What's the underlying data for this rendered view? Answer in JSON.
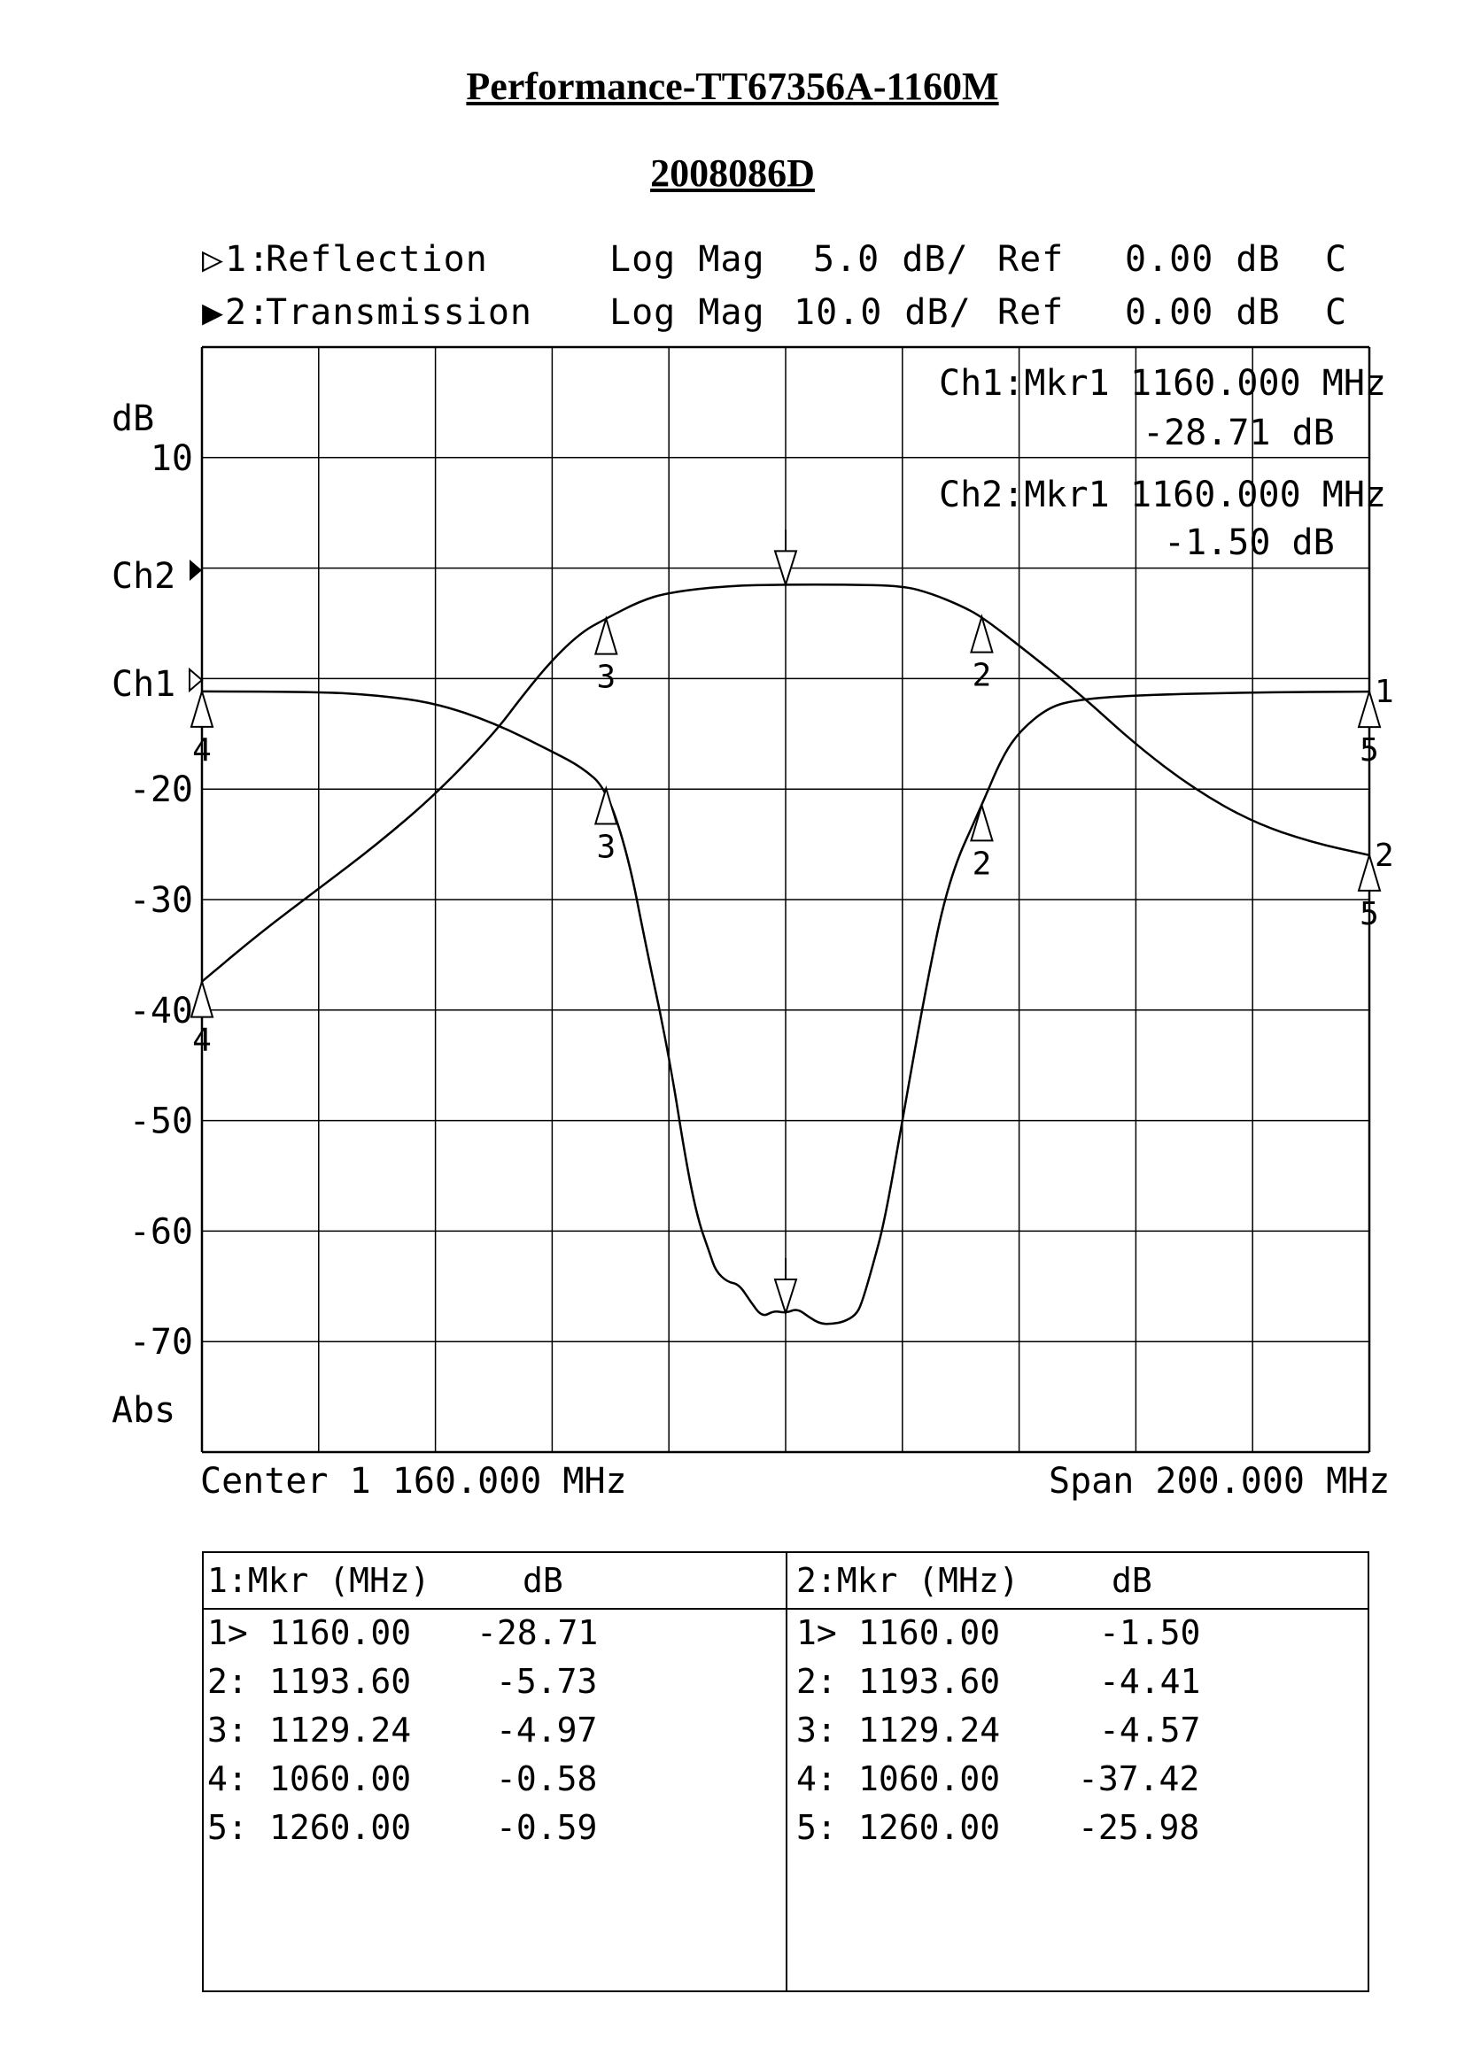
{
  "header": {
    "title": "Performance-TT67356A-1160M",
    "subtitle": "2008086D"
  },
  "channels": [
    {
      "id": "1",
      "name": "Reflection",
      "format": "Log Mag",
      "scale": "5.0 dB/",
      "ref_label": "Ref",
      "ref_value": "0.00 dB",
      "flag": "C"
    },
    {
      "id": "2",
      "name": "Transmission",
      "format": "Log Mag",
      "scale": "10.0 dB/",
      "ref_label": "Ref",
      "ref_value": "0.00 dB",
      "flag": "C"
    }
  ],
  "marker_readouts": [
    {
      "label": "Ch1:Mkr1",
      "freq": "1160.000 MHz",
      "value": "-28.71 dB"
    },
    {
      "label": "Ch2:Mkr1",
      "freq": "1160.000 MHz",
      "value": "-1.50 dB"
    }
  ],
  "footer": {
    "center": "Center 1 160.000 MHz",
    "span": "Span 200.000 MHz"
  },
  "chart_data": {
    "type": "line",
    "xlabel": "",
    "ylabel": "dB",
    "axis_bottom_label": "Abs",
    "x_range_mhz": [
      1060,
      1260
    ],
    "ylim": [
      -80,
      20
    ],
    "y_ticks": [
      10,
      -20,
      -30,
      -40,
      -50,
      -60,
      -70
    ],
    "y_tick_labels": [
      "10",
      "-20",
      "-30",
      "-40",
      "-50",
      "-60",
      "-70"
    ],
    "ref_labels": [
      "Ch2",
      "Ch1"
    ],
    "ref_levels_db": [
      0,
      -10
    ],
    "grid": true,
    "grid_divisions_x": 10,
    "series": [
      {
        "name": "Reflection",
        "trace_tag": "1",
        "ref_position_db": -10,
        "scale_db_per_div": 5,
        "x": [
          1060,
          1080,
          1090,
          1100,
          1110,
          1120,
          1125,
          1129.24,
          1133,
          1136,
          1140,
          1143,
          1145,
          1147,
          1148,
          1150,
          1152,
          1154,
          1156,
          1158,
          1160,
          1162,
          1164,
          1166,
          1168,
          1170,
          1172,
          1173,
          1175,
          1177,
          1180,
          1184,
          1188,
          1193.6,
          1197,
          1200,
          1205,
          1210,
          1220,
          1240,
          1260
        ],
        "y": [
          -0.58,
          -0.6,
          -0.75,
          -1.1,
          -2,
          -3.3,
          -4,
          -4.97,
          -8,
          -12,
          -17,
          -22,
          -24.5,
          -26,
          -26.8,
          -27.3,
          -27.4,
          -28.2,
          -28.9,
          -28.6,
          -28.71,
          -28.5,
          -28.9,
          -29.2,
          -29.2,
          -29.1,
          -28.8,
          -28.3,
          -26.5,
          -24.5,
          -20,
          -14,
          -9,
          -5.73,
          -3.6,
          -2.4,
          -1.3,
          -0.95,
          -0.75,
          -0.62,
          -0.59
        ]
      },
      {
        "name": "Transmission",
        "trace_tag": "2",
        "ref_position_db": 0,
        "scale_db_per_div": 10,
        "x": [
          1060,
          1070,
          1080,
          1090,
          1100,
          1110,
          1115,
          1120,
          1125,
          1129.24,
          1135,
          1140,
          1150,
          1160,
          1170,
          1180,
          1185,
          1190,
          1193.6,
          1200,
          1210,
          1220,
          1230,
          1240,
          1250,
          1260
        ],
        "y": [
          -37.42,
          -33,
          -29,
          -25,
          -20.5,
          -15,
          -11.5,
          -8.3,
          -5.8,
          -4.57,
          -3,
          -2.2,
          -1.6,
          -1.5,
          -1.5,
          -1.6,
          -2.3,
          -3.4,
          -4.41,
          -7,
          -11.2,
          -16,
          -20,
          -23,
          -24.8,
          -25.98
        ]
      }
    ],
    "markers": [
      {
        "n": "1",
        "ch": 1,
        "x": 1160,
        "y": -28.71
      },
      {
        "n": "2",
        "ch": 1,
        "x": 1193.6,
        "y": -5.73
      },
      {
        "n": "3",
        "ch": 1,
        "x": 1129.24,
        "y": -4.97
      },
      {
        "n": "4",
        "ch": 1,
        "x": 1060,
        "y": -0.58
      },
      {
        "n": "5",
        "ch": 1,
        "x": 1260,
        "y": -0.59
      },
      {
        "n": "1",
        "ch": 2,
        "x": 1160,
        "y": -1.5
      },
      {
        "n": "2",
        "ch": 2,
        "x": 1193.6,
        "y": -4.41
      },
      {
        "n": "3",
        "ch": 2,
        "x": 1129.24,
        "y": -4.57
      },
      {
        "n": "4",
        "ch": 2,
        "x": 1060,
        "y": -37.42
      },
      {
        "n": "5",
        "ch": 2,
        "x": 1260,
        "y": -25.98
      }
    ]
  },
  "marker_table": [
    {
      "header_mkr": "1:Mkr (MHz)",
      "header_db": "dB",
      "rows": [
        {
          "idx": "1>",
          "freq": "1160.00",
          "db": "-28.71"
        },
        {
          "idx": "2:",
          "freq": "1193.60",
          "db": "-5.73"
        },
        {
          "idx": "3:",
          "freq": "1129.24",
          "db": "-4.97"
        },
        {
          "idx": "4:",
          "freq": "1060.00",
          "db": "-0.58"
        },
        {
          "idx": "5:",
          "freq": "1260.00",
          "db": "-0.59"
        }
      ]
    },
    {
      "header_mkr": "2:Mkr (MHz)",
      "header_db": "dB",
      "rows": [
        {
          "idx": "1>",
          "freq": "1160.00",
          "db": "-1.50"
        },
        {
          "idx": "2:",
          "freq": "1193.60",
          "db": "-4.41"
        },
        {
          "idx": "3:",
          "freq": "1129.24",
          "db": "-4.57"
        },
        {
          "idx": "4:",
          "freq": "1060.00",
          "db": "-37.42"
        },
        {
          "idx": "5:",
          "freq": "1260.00",
          "db": "-25.98"
        }
      ]
    }
  ]
}
